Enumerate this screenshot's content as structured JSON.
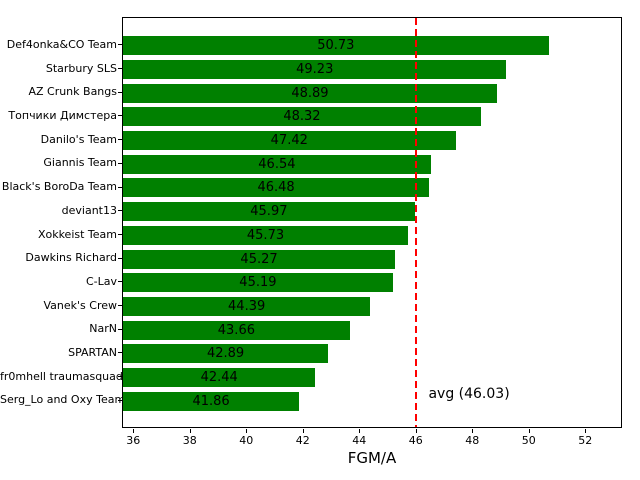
{
  "chart_data": {
    "type": "bar",
    "orientation": "horizontal",
    "xlabel": "FGM/A",
    "categories": [
      "Def4onka&CO Team",
      "Starbury SLS",
      "AZ Crunk Bangs",
      "Топчики Димстера",
      "Danilo's Team",
      "Giannis Team",
      "Black's BoroDa Team",
      "deviant13",
      "Xokkeist Team",
      "Dawkins Richard",
      "C-Lav",
      "Vanek's Crew",
      "NarN",
      "SPARTAN",
      "fr0mhell traumasquad",
      "Serg_Lo and Oxy Team"
    ],
    "values": [
      50.73,
      49.23,
      48.89,
      48.32,
      47.42,
      46.54,
      46.48,
      45.97,
      45.73,
      45.27,
      45.19,
      44.39,
      43.66,
      42.89,
      42.44,
      41.86
    ],
    "bar_labels": [
      "50.73",
      "49.23",
      "48.89",
      "48.32",
      "47.42",
      "46.54",
      "46.48",
      "45.97",
      "45.73",
      "45.27",
      "45.19",
      "44.39",
      "43.66",
      "42.89",
      "42.44",
      "41.86"
    ],
    "x_ticks": [
      36,
      38,
      40,
      42,
      44,
      46,
      48,
      50,
      52
    ],
    "xlim": [
      35.6,
      53.3
    ],
    "avg": {
      "value": 46.03,
      "label": "avg (46.03)"
    },
    "colors": {
      "bar": "#008000",
      "avg_line": "#ff0000",
      "text": "#000000",
      "background": "#ffffff"
    },
    "grid": false,
    "legend": "none"
  }
}
